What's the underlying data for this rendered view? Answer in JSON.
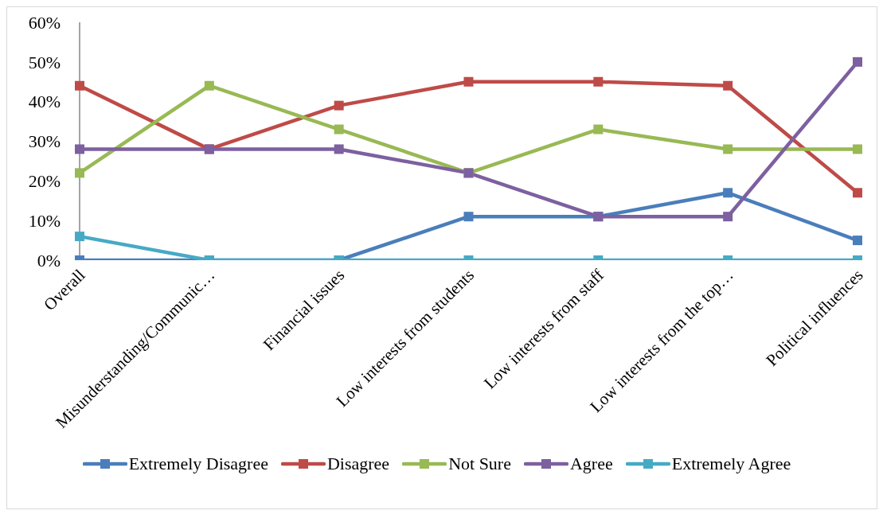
{
  "chart_data": {
    "type": "line",
    "categories": [
      "Overall",
      "Misunderstanding/Communic…",
      "Financial issues",
      "Low interests from students",
      "Low interests from staff",
      "Low interests from the top…",
      "Political influences"
    ],
    "series": [
      {
        "name": "Extremely Disagree",
        "color": "#4a7ebb",
        "values": [
          0,
          0,
          0,
          11,
          11,
          17,
          5
        ]
      },
      {
        "name": "Disagree",
        "color": "#be4b48",
        "values": [
          44,
          28,
          39,
          45,
          45,
          44,
          17
        ]
      },
      {
        "name": "Not Sure",
        "color": "#98b954",
        "values": [
          22,
          44,
          33,
          22,
          33,
          28,
          28
        ]
      },
      {
        "name": "Agree",
        "color": "#7d60a0",
        "values": [
          28,
          28,
          28,
          22,
          11,
          11,
          50
        ]
      },
      {
        "name": "Extremely Agree",
        "color": "#46aac5",
        "values": [
          6,
          0,
          0,
          0,
          0,
          0,
          0
        ]
      }
    ],
    "ylim": [
      0,
      60
    ],
    "yticks": [
      {
        "value": 0,
        "label": "0%"
      },
      {
        "value": 10,
        "label": "10%"
      },
      {
        "value": 20,
        "label": "20%"
      },
      {
        "value": 30,
        "label": "30%"
      },
      {
        "value": 40,
        "label": "40%"
      },
      {
        "value": 50,
        "label": "50%"
      },
      {
        "value": 60,
        "label": "60%"
      }
    ],
    "grid": false,
    "legend": "bottom",
    "marker": "square",
    "line_style": "solid"
  }
}
